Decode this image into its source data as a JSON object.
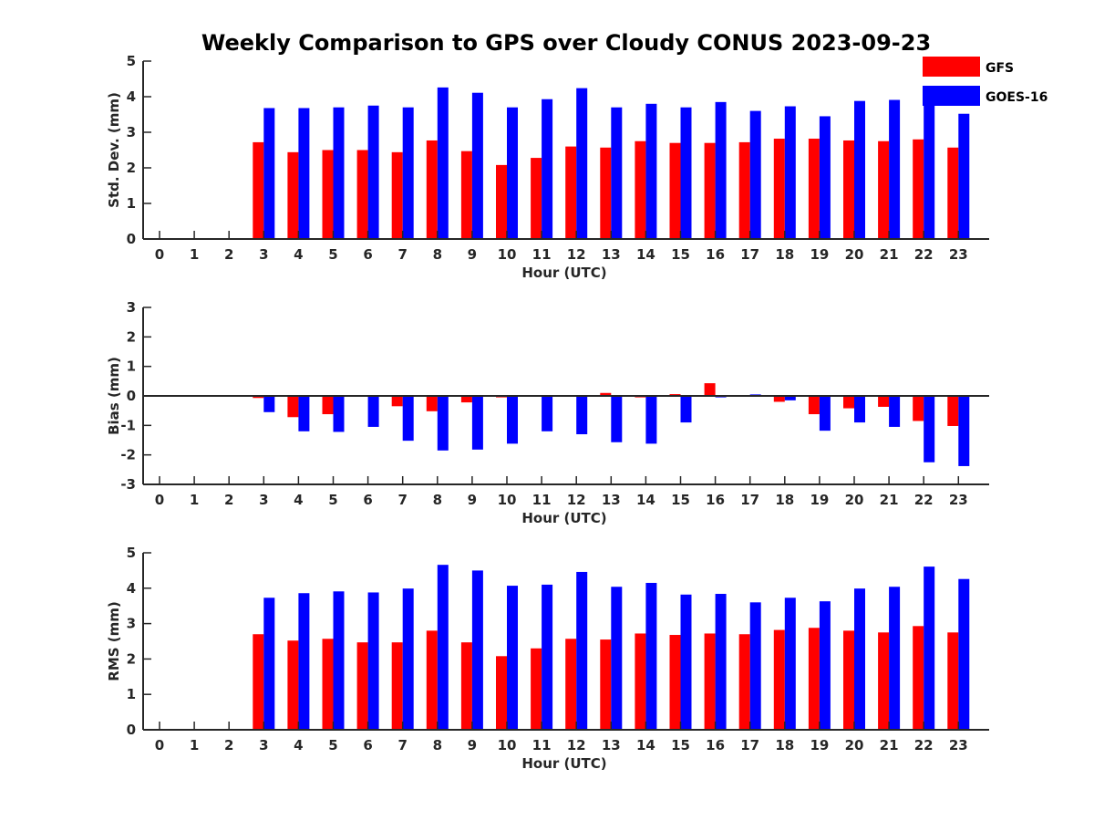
{
  "title": "Weekly Comparison to GPS over Cloudy CONUS 2023-09-23",
  "legend": {
    "placement": "top-right",
    "entries": [
      {
        "name": "GFS",
        "color": "#ff0000"
      },
      {
        "name": "GOES-16",
        "color": "#0000ff"
      }
    ]
  },
  "chart_data": [
    {
      "type": "bar",
      "xlabel": "Hour (UTC)",
      "ylabel": "Std. Dev. (mm)",
      "ylim": [
        0,
        5
      ],
      "yticks": [
        0,
        1,
        2,
        3,
        4,
        5
      ],
      "categories": [
        "0",
        "1",
        "2",
        "3",
        "4",
        "5",
        "6",
        "7",
        "8",
        "9",
        "10",
        "11",
        "12",
        "13",
        "14",
        "15",
        "16",
        "17",
        "18",
        "19",
        "20",
        "21",
        "22",
        "23"
      ],
      "series": [
        {
          "name": "GFS",
          "color": "#ff0000",
          "values": [
            null,
            null,
            null,
            2.72,
            2.44,
            2.5,
            2.5,
            2.44,
            2.77,
            2.47,
            2.08,
            2.28,
            2.6,
            2.57,
            2.75,
            2.7,
            2.7,
            2.72,
            2.82,
            2.82,
            2.77,
            2.75,
            2.8,
            2.57
          ]
        },
        {
          "name": "GOES-16",
          "color": "#0000ff",
          "values": [
            null,
            null,
            null,
            3.68,
            3.68,
            3.7,
            3.75,
            3.7,
            4.26,
            4.11,
            3.7,
            3.93,
            4.24,
            3.7,
            3.8,
            3.7,
            3.85,
            3.6,
            3.73,
            3.45,
            3.88,
            3.91,
            4.0,
            3.52
          ]
        }
      ]
    },
    {
      "type": "bar",
      "xlabel": "Hour (UTC)",
      "ylabel": "Bias (mm)",
      "ylim": [
        -3,
        3
      ],
      "yticks": [
        -3,
        -2,
        -1,
        0,
        1,
        2,
        3
      ],
      "categories": [
        "0",
        "1",
        "2",
        "3",
        "4",
        "5",
        "6",
        "7",
        "8",
        "9",
        "10",
        "11",
        "12",
        "13",
        "14",
        "15",
        "16",
        "17",
        "18",
        "19",
        "20",
        "21",
        "22",
        "23"
      ],
      "series": [
        {
          "name": "GFS",
          "color": "#ff0000",
          "values": [
            null,
            null,
            null,
            -0.07,
            -0.72,
            -0.62,
            -0.02,
            -0.35,
            -0.52,
            -0.22,
            -0.05,
            -0.02,
            -0.02,
            0.1,
            -0.05,
            0.06,
            0.43,
            0.0,
            -0.2,
            -0.62,
            -0.42,
            -0.37,
            -0.85,
            -1.02
          ]
        },
        {
          "name": "GOES-16",
          "color": "#0000ff",
          "values": [
            null,
            null,
            null,
            -0.55,
            -1.2,
            -1.22,
            -1.05,
            -1.52,
            -1.85,
            -1.82,
            -1.62,
            -1.2,
            -1.3,
            -1.57,
            -1.62,
            -0.9,
            -0.05,
            0.05,
            -0.15,
            -1.18,
            -0.9,
            -1.05,
            -2.25,
            -2.38
          ]
        }
      ]
    },
    {
      "type": "bar",
      "xlabel": "Hour (UTC)",
      "ylabel": "RMS (mm)",
      "ylim": [
        0,
        5
      ],
      "yticks": [
        0,
        1,
        2,
        3,
        4,
        5
      ],
      "categories": [
        "0",
        "1",
        "2",
        "3",
        "4",
        "5",
        "6",
        "7",
        "8",
        "9",
        "10",
        "11",
        "12",
        "13",
        "14",
        "15",
        "16",
        "17",
        "18",
        "19",
        "20",
        "21",
        "22",
        "23"
      ],
      "series": [
        {
          "name": "GFS",
          "color": "#ff0000",
          "values": [
            null,
            null,
            null,
            2.7,
            2.52,
            2.57,
            2.47,
            2.47,
            2.8,
            2.47,
            2.08,
            2.3,
            2.57,
            2.55,
            2.72,
            2.68,
            2.72,
            2.7,
            2.82,
            2.88,
            2.8,
            2.75,
            2.93,
            2.75
          ]
        },
        {
          "name": "GOES-16",
          "color": "#0000ff",
          "values": [
            null,
            null,
            null,
            3.73,
            3.86,
            3.91,
            3.88,
            3.99,
            4.66,
            4.5,
            4.07,
            4.1,
            4.46,
            4.04,
            4.15,
            3.82,
            3.84,
            3.6,
            3.73,
            3.63,
            3.99,
            4.04,
            4.61,
            4.26
          ]
        }
      ]
    }
  ]
}
